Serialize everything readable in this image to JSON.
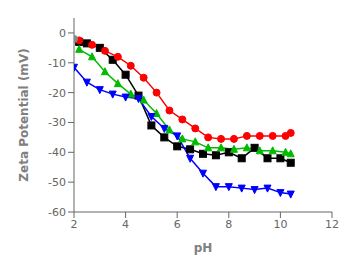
{
  "chart_data": {
    "type": "line",
    "xlabel": "pH",
    "ylabel": "Zeta Potential (mV)",
    "xlim": [
      2,
      12
    ],
    "ylim": [
      -60,
      5
    ],
    "xticks": [
      2,
      4,
      6,
      8,
      10,
      12
    ],
    "yticks": [
      0,
      -10,
      -20,
      -30,
      -40,
      -50,
      -60
    ],
    "grid": false,
    "series": [
      {
        "color": "#000000",
        "marker": "square",
        "x": [
          2.2,
          2.5,
          3.0,
          3.5,
          4.0,
          4.5,
          5.0,
          5.5,
          6.0,
          6.5,
          7.0,
          7.5,
          8.0,
          8.5,
          9.0,
          9.5,
          10.0,
          10.4
        ],
        "values": [
          -3.0,
          -3.5,
          -5.0,
          -9.0,
          -14.0,
          -21.0,
          -31.0,
          -35.0,
          -38.0,
          -39.0,
          -40.5,
          -41.0,
          -40.0,
          -42.0,
          -38.5,
          -42.0,
          -42.0,
          -43.5
        ]
      },
      {
        "color": "#ff0000",
        "marker": "circle",
        "x": [
          2.2,
          2.7,
          3.2,
          3.7,
          4.2,
          4.7,
          5.2,
          5.7,
          6.2,
          6.7,
          7.2,
          7.7,
          8.2,
          8.7,
          9.2,
          9.7,
          10.2,
          10.4
        ],
        "values": [
          -2.5,
          -4.0,
          -6.0,
          -8.0,
          -11.0,
          -15.0,
          -20.0,
          -26.0,
          -29.0,
          -32.0,
          -35.0,
          -35.5,
          -35.5,
          -34.5,
          -34.5,
          -34.5,
          -34.5,
          -33.5
        ]
      },
      {
        "color": "#00bb00",
        "marker": "triangle-up",
        "x": [
          2.2,
          2.7,
          3.2,
          3.7,
          4.2,
          4.7,
          5.2,
          5.7,
          6.2,
          6.7,
          7.2,
          7.7,
          8.2,
          8.7,
          9.2,
          9.7,
          10.2,
          10.4
        ],
        "values": [
          -5.5,
          -8.0,
          -13.0,
          -17.0,
          -20.5,
          -22.5,
          -27.0,
          -32.5,
          -35.5,
          -36.5,
          -38.5,
          -38.5,
          -39.0,
          -38.5,
          -39.5,
          -39.5,
          -40.0,
          -40.5
        ]
      },
      {
        "color": "#0000ff",
        "marker": "triangle-down",
        "x": [
          2.0,
          2.5,
          3.0,
          3.5,
          4.0,
          4.5,
          5.0,
          5.5,
          6.0,
          6.5,
          7.0,
          7.5,
          8.0,
          8.5,
          9.0,
          9.5,
          10.0,
          10.4
        ],
        "values": [
          -11.5,
          -16.5,
          -19.0,
          -20.5,
          -21.5,
          -22.0,
          -28.0,
          -32.0,
          -34.5,
          -42.0,
          -47.0,
          -51.5,
          -51.5,
          -52.0,
          -52.5,
          -52.0,
          -53.5,
          -54.0
        ]
      },
      {
        "type": "scatter",
        "color": "#888888",
        "marker": "circle",
        "x": [
          2.0
        ],
        "values": [
          -2.0
        ]
      }
    ]
  }
}
